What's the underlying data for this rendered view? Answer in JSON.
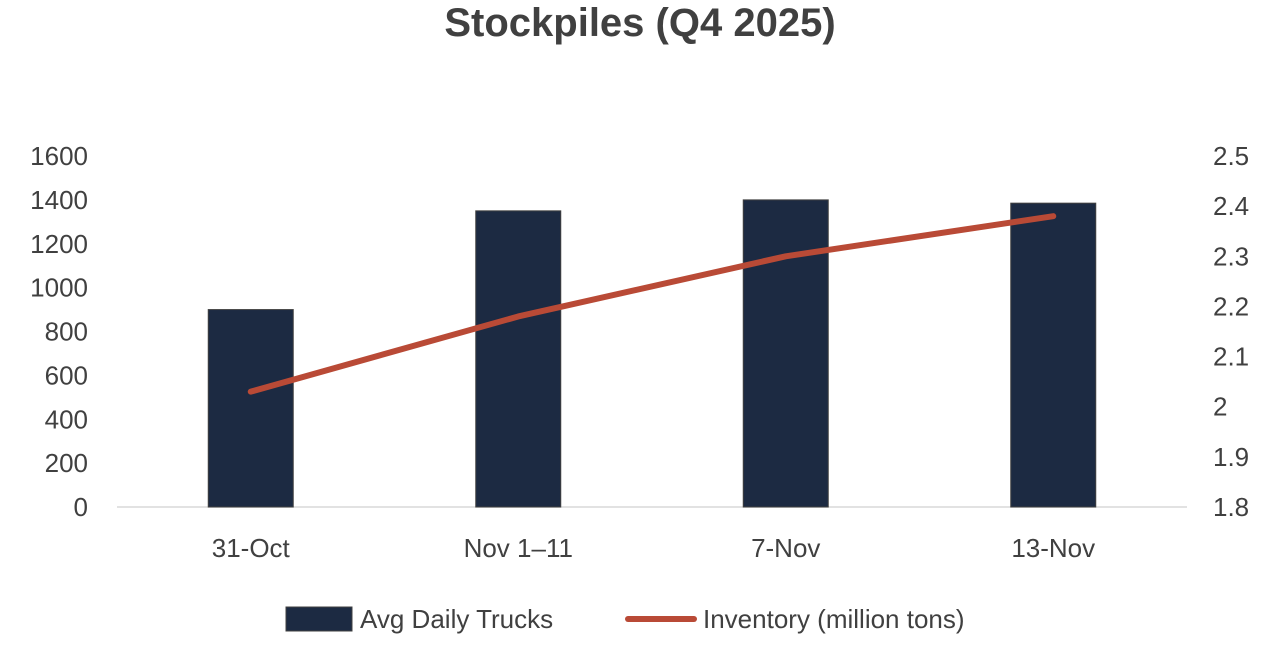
{
  "chart_data": {
    "type": "bar",
    "title": "Stockpiles (Q4 2025)",
    "categories": [
      "31-Oct",
      "Nov 1–11",
      "7-Nov",
      "13-Nov"
    ],
    "series": [
      {
        "name": "Avg Daily Trucks",
        "type": "bar",
        "axis": "left",
        "color": "#1c2a42",
        "values": [
          900,
          1350,
          1400,
          1385
        ]
      },
      {
        "name": "Inventory (million tons)",
        "type": "line",
        "axis": "right",
        "color": "#b94a36",
        "values": [
          2.03,
          2.18,
          2.3,
          2.38
        ]
      }
    ],
    "y_left": {
      "min": 0,
      "max": 1600,
      "ticks": [
        "0",
        "200",
        "400",
        "600",
        "800",
        "1000",
        "1200",
        "1400",
        "1600"
      ]
    },
    "y_right": {
      "min": 1.8,
      "max": 2.5,
      "ticks": [
        "1.8",
        "1.9",
        "2",
        "2.1",
        "2.2",
        "2.3",
        "2.4",
        "2.5"
      ]
    },
    "grid": false,
    "legend_position": "bottom"
  }
}
